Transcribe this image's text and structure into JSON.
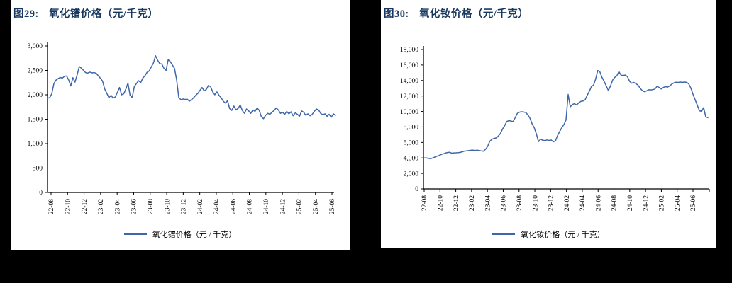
{
  "page": {
    "background": "#000000",
    "panel_background": "#ffffff"
  },
  "colors": {
    "title_navy": "#17375E",
    "line_blue": "#3E66A8",
    "axis_black": "#000000"
  },
  "figures": [
    {
      "title_prefix": "图29:",
      "title": "氧化镨价格（元/千克）"
    },
    {
      "title_prefix": "图30:",
      "title": "氧化钕价格（元/千克）"
    }
  ],
  "chart_data": [
    {
      "type": "line",
      "title": "图29: 氧化镨价格（元/千克）",
      "xlabel": "",
      "ylabel": "",
      "ylim": [
        0,
        3000
      ],
      "grid": false,
      "legend_position": "bottom",
      "x_tick_labels": [
        "22-08",
        "22-10",
        "22-12",
        "23-02",
        "23-04",
        "23-06",
        "23-08",
        "23-10",
        "23-12",
        "24-02",
        "24-04",
        "24-06",
        "24-08",
        "24-10",
        "24-12",
        "25-02",
        "25-04",
        "25-06"
      ],
      "y_tick_values": [
        0,
        500,
        1000,
        1500,
        2000,
        2500,
        3000
      ],
      "y_tick_labels": [
        "0",
        "500",
        "1,000",
        "1,500",
        "2,000",
        "2,500",
        "3,000"
      ],
      "series": [
        {
          "name": "氧化镨价格（元 / 千克）",
          "color": "#3E66A8",
          "values": [
            1930,
            1940,
            2020,
            2230,
            2300,
            2330,
            2355,
            2340,
            2380,
            2385,
            2300,
            2180,
            2350,
            2260,
            2410,
            2580,
            2545,
            2500,
            2455,
            2445,
            2465,
            2450,
            2455,
            2440,
            2390,
            2340,
            2280,
            2120,
            2030,
            1940,
            1990,
            1930,
            1955,
            2050,
            2150,
            2000,
            2020,
            2120,
            2240,
            1990,
            1945,
            2170,
            2230,
            2290,
            2250,
            2340,
            2390,
            2460,
            2490,
            2570,
            2650,
            2800,
            2710,
            2640,
            2630,
            2540,
            2500,
            2720,
            2680,
            2610,
            2540,
            2300,
            1940,
            1900,
            1915,
            1905,
            1910,
            1870,
            1900,
            1940,
            1990,
            2030,
            2090,
            2150,
            2080,
            2110,
            2190,
            2170,
            2060,
            2000,
            2060,
            1990,
            1940,
            1870,
            1830,
            1880,
            1720,
            1680,
            1770,
            1690,
            1720,
            1790,
            1680,
            1620,
            1710,
            1670,
            1620,
            1690,
            1660,
            1730,
            1680,
            1550,
            1510,
            1580,
            1620,
            1600,
            1640,
            1680,
            1730,
            1690,
            1620,
            1640,
            1600,
            1660,
            1610,
            1650,
            1570,
            1630,
            1600,
            1560,
            1670,
            1640,
            1580,
            1610,
            1570,
            1600,
            1660,
            1710,
            1690,
            1620,
            1590,
            1610,
            1560,
            1600,
            1540,
            1610,
            1580
          ]
        }
      ]
    },
    {
      "type": "line",
      "title": "图30: 氧化钕价格（元/千克）",
      "xlabel": "",
      "ylabel": "",
      "ylim": [
        0,
        18000
      ],
      "grid": false,
      "legend_position": "bottom",
      "x_tick_labels": [
        "22-08",
        "22-10",
        "22-12",
        "23-02",
        "23-04",
        "23-06",
        "23-08",
        "23-10",
        "23-12",
        "24-02",
        "24-04",
        "24-06",
        "24-08",
        "24-10",
        "24-12",
        "25-02",
        "25-04",
        "25-06"
      ],
      "y_tick_values": [
        0,
        2000,
        4000,
        6000,
        8000,
        10000,
        12000,
        14000,
        16000,
        18000
      ],
      "y_tick_labels": [
        "0",
        "2,000",
        "4,000",
        "6,000",
        "8,000",
        "10,000",
        "12,000",
        "14,000",
        "16,000",
        "18,000"
      ],
      "series": [
        {
          "name": "氧化钕价格（元 / 千克）",
          "color": "#3E66A8",
          "values": [
            4000,
            3990,
            3950,
            3900,
            3990,
            4100,
            4220,
            4310,
            4440,
            4530,
            4620,
            4700,
            4720,
            4610,
            4650,
            4660,
            4680,
            4710,
            4800,
            4880,
            4910,
            4940,
            4990,
            5010,
            4960,
            5000,
            4960,
            4910,
            4870,
            5120,
            5500,
            6150,
            6400,
            6520,
            6580,
            6820,
            7150,
            7700,
            8150,
            8700,
            8820,
            8760,
            8700,
            9200,
            9750,
            9900,
            9960,
            9920,
            9870,
            9550,
            9100,
            8400,
            7900,
            7100,
            6100,
            6430,
            6280,
            6230,
            6320,
            6250,
            6310,
            6080,
            6200,
            6900,
            7400,
            7900,
            8300,
            8900,
            12200,
            10600,
            10900,
            11000,
            10850,
            11100,
            11300,
            11350,
            11500,
            12100,
            12600,
            13200,
            13400,
            14200,
            15300,
            15100,
            14400,
            13900,
            13300,
            12700,
            13300,
            14050,
            14400,
            14600,
            15150,
            14680,
            14660,
            14700,
            14500,
            13900,
            13650,
            13750,
            13600,
            13400,
            13000,
            12700,
            12550,
            12650,
            12800,
            12780,
            12820,
            12900,
            13250,
            13100,
            12900,
            13100,
            13200,
            13150,
            13300,
            13550,
            13700,
            13780,
            13750,
            13800,
            13760,
            13800,
            13760,
            13550,
            13000,
            12200,
            11500,
            10800,
            10100,
            10000,
            10500,
            9300,
            9200
          ]
        }
      ]
    }
  ]
}
